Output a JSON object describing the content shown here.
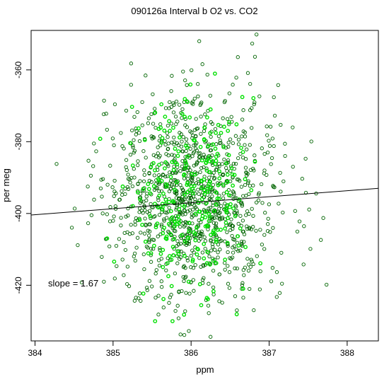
{
  "chart_data": {
    "type": "scatter",
    "title": "090126a   Interval b O2 vs. CO2",
    "xlabel": "ppm",
    "ylabel": "per meg",
    "xlim": [
      383.95,
      388.4
    ],
    "ylim": [
      -435.5,
      -349
    ],
    "x_ticks": [
      384,
      385,
      386,
      387,
      388
    ],
    "y_ticks": [
      -360,
      -380,
      -400,
      -420
    ],
    "x_tick_labels": [
      "384",
      "385",
      "386",
      "387",
      "388"
    ],
    "y_tick_labels": [
      "-360",
      "-380",
      "-400",
      "-420"
    ],
    "grid": false,
    "legend": "none",
    "annotation": "slope =  1.67",
    "fit_line": {
      "slope": 1.67,
      "point": [
        386.0,
        -397.0
      ]
    },
    "series": [
      {
        "color": "#006400",
        "point_count": 1100,
        "x_mean": 386.0,
        "x_sd": 0.58,
        "y_mean": -395.5,
        "y_sd": 14.5,
        "x_range": [
          384.1,
          388.2
        ],
        "y_range": [
          -434.5,
          -350
        ]
      },
      {
        "color": "#00e000",
        "point_count": 280,
        "x_mean": 385.95,
        "x_sd": 0.38,
        "y_mean": -394.0,
        "y_sd": 12.5,
        "x_range": [
          384.5,
          387.6
        ],
        "y_range": [
          -430,
          -353
        ]
      }
    ]
  }
}
